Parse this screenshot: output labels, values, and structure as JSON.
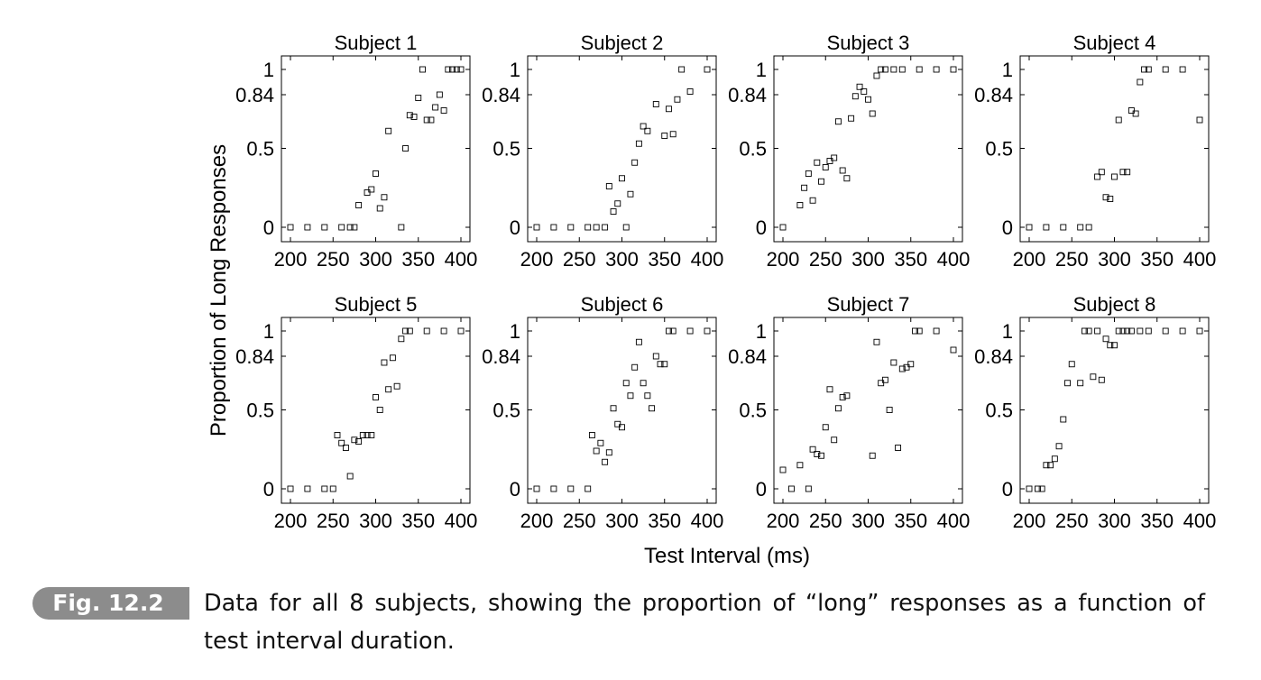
{
  "figure": {
    "ylabel": "Proportion of Long Responses",
    "xlabel": "Test Interval (ms)",
    "caption_tag": "Fig. 12.2",
    "caption_text": "Data for all 8 subjects, showing the proportion of “long” responses as a function of test interval duration."
  },
  "chart_data": [
    {
      "type": "scatter",
      "title": "Subject 1",
      "xlim": [
        200,
        400
      ],
      "ylim": [
        0,
        1
      ],
      "xticks": [
        200,
        250,
        300,
        350,
        400
      ],
      "yticks": [
        0,
        0.5,
        0.84,
        1
      ],
      "ytick_labels": [
        "0",
        "0.5",
        "0.84",
        "1"
      ],
      "x": [
        200,
        220,
        240,
        260,
        270,
        275,
        280,
        290,
        295,
        300,
        305,
        310,
        315,
        330,
        335,
        340,
        345,
        350,
        355,
        360,
        365,
        370,
        375,
        380,
        385,
        390,
        395,
        400
      ],
      "y": [
        0,
        0,
        0,
        0,
        0,
        0,
        0.14,
        0.22,
        0.24,
        0.34,
        0.12,
        0.19,
        0.61,
        0,
        0.5,
        0.71,
        0.7,
        0.82,
        1,
        0.68,
        0.68,
        0.76,
        0.84,
        0.74,
        1,
        1,
        1,
        1
      ]
    },
    {
      "type": "scatter",
      "title": "Subject 2",
      "xlim": [
        200,
        400
      ],
      "ylim": [
        0,
        1
      ],
      "xticks": [
        200,
        250,
        300,
        350,
        400
      ],
      "yticks": [
        0,
        0.5,
        0.84,
        1
      ],
      "ytick_labels": [
        "0",
        "0.5",
        "0.84",
        "1"
      ],
      "x": [
        200,
        220,
        240,
        260,
        270,
        280,
        285,
        290,
        295,
        300,
        305,
        310,
        315,
        320,
        325,
        330,
        340,
        350,
        355,
        360,
        365,
        370,
        380,
        400
      ],
      "y": [
        0,
        0,
        0,
        0,
        0,
        0,
        0.26,
        0.1,
        0.15,
        0.31,
        0,
        0.21,
        0.41,
        0.53,
        0.64,
        0.61,
        0.78,
        0.58,
        0.75,
        0.59,
        0.81,
        1,
        0.86,
        1
      ]
    },
    {
      "type": "scatter",
      "title": "Subject 3",
      "xlim": [
        200,
        400
      ],
      "ylim": [
        0,
        1
      ],
      "xticks": [
        200,
        250,
        300,
        350,
        400
      ],
      "yticks": [
        0,
        0.5,
        0.84,
        1
      ],
      "ytick_labels": [
        "0",
        "0.5",
        "0.84",
        "1"
      ],
      "x": [
        200,
        220,
        225,
        230,
        235,
        240,
        245,
        250,
        255,
        260,
        265,
        270,
        275,
        280,
        285,
        290,
        295,
        300,
        305,
        310,
        315,
        320,
        330,
        340,
        360,
        380,
        400
      ],
      "y": [
        0,
        0.14,
        0.25,
        0.34,
        0.17,
        0.41,
        0.29,
        0.38,
        0.42,
        0.44,
        0.67,
        0.36,
        0.31,
        0.69,
        0.83,
        0.89,
        0.86,
        0.81,
        0.72,
        0.96,
        1,
        1,
        1,
        1,
        1,
        1,
        1
      ]
    },
    {
      "type": "scatter",
      "title": "Subject 4",
      "xlim": [
        200,
        400
      ],
      "ylim": [
        0,
        1
      ],
      "xticks": [
        200,
        250,
        300,
        350,
        400
      ],
      "yticks": [
        0,
        0.5,
        0.84,
        1
      ],
      "ytick_labels": [
        "0",
        "0.5",
        "0.84",
        "1"
      ],
      "x": [
        200,
        220,
        240,
        260,
        270,
        280,
        285,
        290,
        295,
        300,
        305,
        310,
        315,
        320,
        325,
        330,
        335,
        340,
        360,
        380,
        400
      ],
      "y": [
        0,
        0,
        0,
        0,
        0,
        0.32,
        0.35,
        0.19,
        0.18,
        0.32,
        0.68,
        0.35,
        0.35,
        0.74,
        0.72,
        0.92,
        1,
        1,
        1,
        1,
        0.68
      ]
    },
    {
      "type": "scatter",
      "title": "Subject 5",
      "xlim": [
        200,
        400
      ],
      "ylim": [
        0,
        1
      ],
      "xticks": [
        200,
        250,
        300,
        350,
        400
      ],
      "yticks": [
        0,
        0.5,
        0.84,
        1
      ],
      "ytick_labels": [
        "0",
        "0.5",
        "0.84",
        "1"
      ],
      "x": [
        200,
        220,
        240,
        250,
        255,
        260,
        265,
        270,
        275,
        280,
        285,
        290,
        295,
        300,
        305,
        310,
        315,
        320,
        325,
        330,
        335,
        340,
        360,
        380,
        400
      ],
      "y": [
        0,
        0,
        0,
        0,
        0.34,
        0.29,
        0.26,
        0.08,
        0.31,
        0.3,
        0.34,
        0.34,
        0.34,
        0.58,
        0.5,
        0.8,
        0.63,
        0.83,
        0.65,
        0.95,
        1,
        1,
        1,
        1,
        1
      ]
    },
    {
      "type": "scatter",
      "title": "Subject 6",
      "xlim": [
        200,
        400
      ],
      "ylim": [
        0,
        1
      ],
      "xticks": [
        200,
        250,
        300,
        350,
        400
      ],
      "yticks": [
        0,
        0.5,
        0.84,
        1
      ],
      "ytick_labels": [
        "0",
        "0.5",
        "0.84",
        "1"
      ],
      "x": [
        200,
        220,
        240,
        260,
        265,
        270,
        275,
        280,
        285,
        290,
        295,
        300,
        305,
        310,
        315,
        320,
        325,
        330,
        335,
        340,
        345,
        350,
        355,
        360,
        380,
        400
      ],
      "y": [
        0,
        0,
        0,
        0,
        0.34,
        0.24,
        0.29,
        0.17,
        0.23,
        0.51,
        0.41,
        0.39,
        0.67,
        0.59,
        0.77,
        0.93,
        0.67,
        0.59,
        0.51,
        0.84,
        0.79,
        0.79,
        1,
        1,
        1,
        1
      ]
    },
    {
      "type": "scatter",
      "title": "Subject 7",
      "xlim": [
        200,
        400
      ],
      "ylim": [
        0,
        1
      ],
      "xticks": [
        200,
        250,
        300,
        350,
        400
      ],
      "yticks": [
        0,
        0.5,
        0.84,
        1
      ],
      "ytick_labels": [
        "0",
        "0.5",
        "0.84",
        "1"
      ],
      "x": [
        200,
        210,
        220,
        230,
        235,
        240,
        245,
        250,
        255,
        260,
        265,
        270,
        275,
        305,
        310,
        315,
        320,
        325,
        330,
        335,
        340,
        345,
        350,
        355,
        360,
        380,
        400
      ],
      "y": [
        0.12,
        0,
        0.15,
        0,
        0.25,
        0.22,
        0.21,
        0.39,
        0.63,
        0.31,
        0.51,
        0.58,
        0.59,
        0.21,
        0.93,
        0.67,
        0.69,
        0.5,
        0.8,
        0.26,
        0.76,
        0.77,
        0.79,
        1,
        1,
        1,
        0.88
      ]
    },
    {
      "type": "scatter",
      "title": "Subject 8",
      "xlim": [
        200,
        400
      ],
      "ylim": [
        0,
        1
      ],
      "xticks": [
        200,
        250,
        300,
        350,
        400
      ],
      "yticks": [
        0,
        0.5,
        0.84,
        1
      ],
      "ytick_labels": [
        "0",
        "0.5",
        "0.84",
        "1"
      ],
      "x": [
        200,
        210,
        215,
        220,
        225,
        230,
        235,
        240,
        245,
        250,
        260,
        265,
        270,
        275,
        280,
        285,
        290,
        295,
        300,
        305,
        310,
        315,
        320,
        330,
        340,
        360,
        380,
        400
      ],
      "y": [
        0,
        0,
        0,
        0.15,
        0.15,
        0.19,
        0.27,
        0.44,
        0.67,
        0.79,
        0.67,
        1,
        1,
        0.71,
        1,
        0.69,
        0.95,
        0.91,
        0.91,
        1,
        1,
        1,
        1,
        1,
        1,
        1,
        1,
        1
      ]
    }
  ]
}
